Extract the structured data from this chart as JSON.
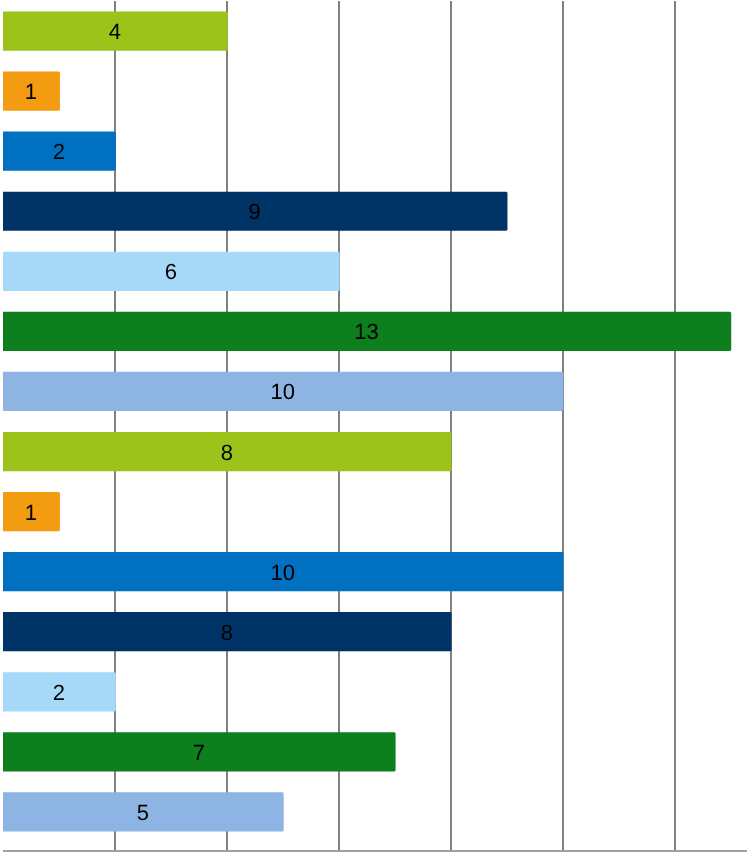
{
  "chart_data": {
    "type": "bar",
    "orientation": "horizontal",
    "categories": [
      null,
      null,
      null,
      null,
      null,
      null,
      null,
      null,
      null,
      null,
      null,
      null,
      null,
      null
    ],
    "values": [
      4,
      1,
      2,
      9,
      6,
      13,
      10,
      8,
      1,
      10,
      8,
      2,
      7,
      5
    ],
    "colors": [
      "#9bc31a",
      "#f39c12",
      "#0070c0",
      "#003366",
      "#a6d9f7",
      "#0e7f1e",
      "#8db4e2",
      "#9bc31a",
      "#f39c12",
      "#0070c0",
      "#003366",
      "#a6d9f7",
      "#0e7f1e",
      "#8db4e2"
    ],
    "xlim": [
      0,
      13.3
    ],
    "grid": "x",
    "data_labels": true
  }
}
